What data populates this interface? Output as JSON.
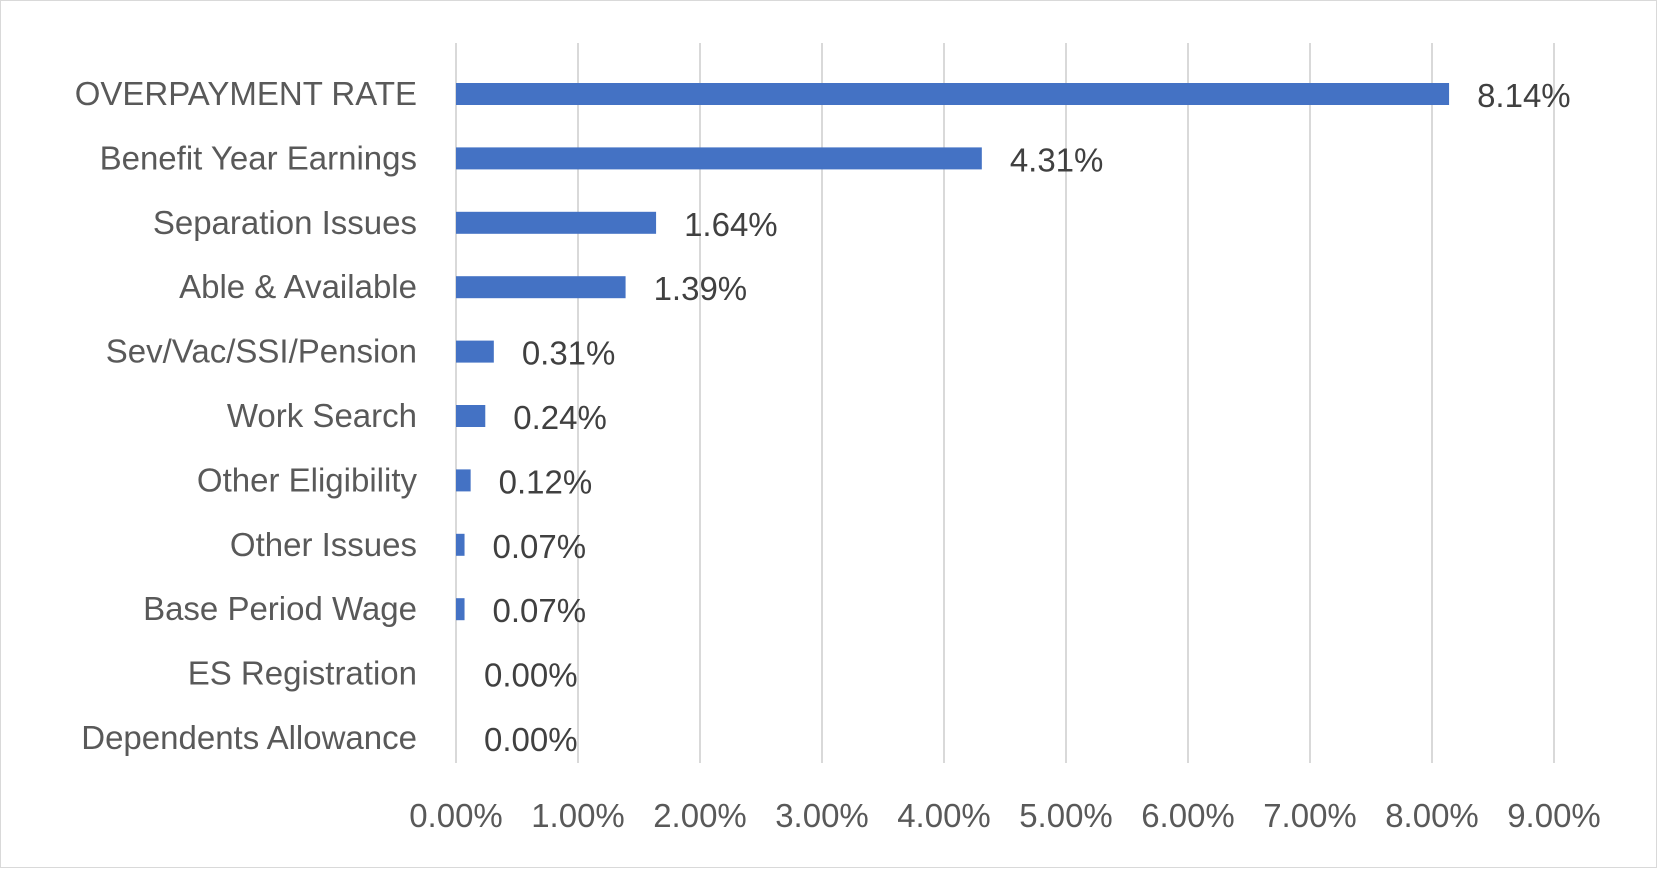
{
  "chart_data": {
    "type": "bar",
    "orientation": "horizontal",
    "categories": [
      "OVERPAYMENT RATE",
      "Benefit Year Earnings",
      "Separation Issues",
      "Able & Available",
      "Sev/Vac/SSI/Pension",
      "Work Search",
      "Other Eligibility",
      "Other Issues",
      "Base Period Wage",
      "ES Registration",
      "Dependents Allowance"
    ],
    "values": [
      8.14,
      4.31,
      1.64,
      1.39,
      0.31,
      0.24,
      0.12,
      0.07,
      0.07,
      0.0,
      0.0
    ],
    "data_labels": [
      "8.14%",
      "4.31%",
      "1.64%",
      "1.39%",
      "0.31%",
      "0.24%",
      "0.12%",
      "0.07%",
      "0.07%",
      "0.00%",
      "0.00%"
    ],
    "x_ticks": [
      "0.00%",
      "1.00%",
      "2.00%",
      "3.00%",
      "4.00%",
      "5.00%",
      "6.00%",
      "7.00%",
      "8.00%",
      "9.00%"
    ],
    "xlim": [
      0,
      9
    ],
    "grid": "vertical",
    "legend": "none",
    "title": "",
    "xlabel": "",
    "ylabel": "",
    "colors": {
      "bar": "#4472c4",
      "grid": "#d9d9d9"
    }
  }
}
